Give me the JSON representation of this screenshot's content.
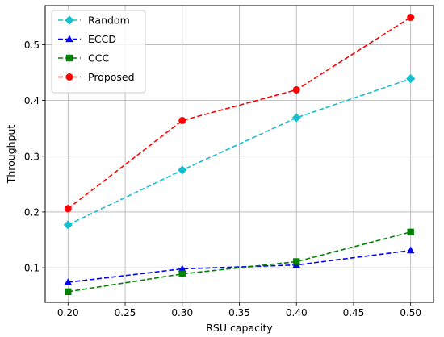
{
  "chart_data": {
    "type": "line",
    "title": "",
    "xlabel": "RSU capacity",
    "ylabel": "Throughput",
    "x": [
      0.2,
      0.3,
      0.4,
      0.5
    ],
    "xlim": [
      0.18,
      0.52
    ],
    "ylim": [
      0.038,
      0.57
    ],
    "xticks": [
      0.2,
      0.25,
      0.3,
      0.35,
      0.4,
      0.45,
      0.5
    ],
    "xtick_labels": [
      "0.20",
      "0.25",
      "0.30",
      "0.35",
      "0.40",
      "0.45",
      "0.50"
    ],
    "yticks": [
      0.1,
      0.2,
      0.3,
      0.4,
      0.5
    ],
    "ytick_labels": [
      "0.1",
      "0.2",
      "0.3",
      "0.4",
      "0.5"
    ],
    "grid": true,
    "legend_position": "upper-left",
    "series": [
      {
        "name": "Random",
        "values": [
          0.177,
          0.275,
          0.369,
          0.439
        ],
        "color": "#17becf",
        "marker": "diamond",
        "linestyle": "dashed"
      },
      {
        "name": "ECCD",
        "values": [
          0.074,
          0.098,
          0.105,
          0.131
        ],
        "color": "#0000ff",
        "marker": "triangle",
        "linestyle": "dashed"
      },
      {
        "name": "CCC",
        "values": [
          0.057,
          0.089,
          0.111,
          0.164
        ],
        "color": "#008000",
        "marker": "square",
        "linestyle": "dashed"
      },
      {
        "name": "Proposed",
        "values": [
          0.206,
          0.364,
          0.419,
          0.549
        ],
        "color": "#ff0000",
        "marker": "circle",
        "linestyle": "dashed"
      }
    ]
  }
}
